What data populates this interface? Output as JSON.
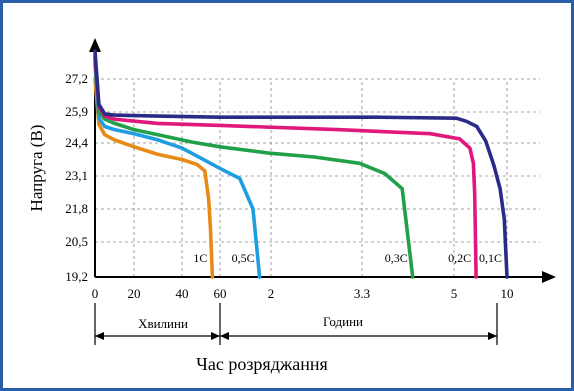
{
  "chart_data": {
    "type": "line",
    "xlabel": "Час розряджання",
    "ylabel": "Напруга (В)",
    "ylim": [
      19.2,
      28.5
    ],
    "y_ticks": [
      "19,2",
      "20,5",
      "21,8",
      "23,1",
      "24,4",
      "25,9",
      "27,2"
    ],
    "x_tick_labels": [
      "0",
      "20",
      "40",
      "60",
      "2",
      "3.3",
      "5",
      "10"
    ],
    "x_units": [
      {
        "label": "Хвилини",
        "range": [
          "0",
          "60"
        ]
      },
      {
        "label": "Години",
        "range": [
          "60",
          "10"
        ]
      }
    ],
    "grid": true,
    "series": [
      {
        "name": "1С",
        "color": "#e88b14",
        "points": [
          [
            0,
            27.2
          ],
          [
            2,
            25.3
          ],
          [
            5,
            24.8
          ],
          [
            10,
            24.55
          ],
          [
            20,
            24.25
          ],
          [
            30,
            23.95
          ],
          [
            40,
            23.75
          ],
          [
            48,
            23.55
          ],
          [
            52,
            23.3
          ],
          [
            54,
            22.2
          ],
          [
            55,
            21.0
          ],
          [
            56,
            19.2
          ]
        ]
      },
      {
        "name": "0,5С",
        "color": "#1e9ee0",
        "points": [
          [
            0,
            27.8
          ],
          [
            2,
            25.6
          ],
          [
            5,
            25.2
          ],
          [
            10,
            25.05
          ],
          [
            20,
            24.85
          ],
          [
            30,
            24.55
          ],
          [
            40,
            24.2
          ],
          [
            50,
            23.8
          ],
          [
            60,
            23.4
          ],
          [
            66,
            23.0
          ],
          [
            70,
            21.8
          ],
          [
            72,
            19.2
          ]
        ]
      },
      {
        "name": "0,3С",
        "color": "#21a04a",
        "points": [
          [
            0,
            28.0
          ],
          [
            2,
            25.9
          ],
          [
            5,
            25.55
          ],
          [
            10,
            25.35
          ],
          [
            20,
            25.05
          ],
          [
            30,
            24.8
          ],
          [
            45,
            24.45
          ],
          [
            60,
            24.25
          ],
          [
            75,
            24.0
          ],
          [
            85,
            23.85
          ],
          [
            95,
            23.6
          ],
          [
            102,
            23.2
          ],
          [
            107,
            22.6
          ],
          [
            110,
            19.2
          ]
        ]
      },
      {
        "name": "0,2С",
        "color": "#e0187c",
        "points": [
          [
            0,
            28.1
          ],
          [
            2,
            26.1
          ],
          [
            5,
            25.7
          ],
          [
            10,
            25.55
          ],
          [
            30,
            25.35
          ],
          [
            60,
            25.25
          ],
          [
            90,
            25.05
          ],
          [
            115,
            24.85
          ],
          [
            130,
            24.6
          ],
          [
            145,
            24.2
          ],
          [
            150,
            23.6
          ],
          [
            152,
            22.4
          ],
          [
            154,
            19.2
          ]
        ]
      },
      {
        "name": "0,1С",
        "color": "#2a2a88",
        "points": [
          [
            0,
            28.3
          ],
          [
            2,
            26.2
          ],
          [
            5,
            25.8
          ],
          [
            10,
            25.75
          ],
          [
            30,
            25.7
          ],
          [
            60,
            25.65
          ],
          [
            100,
            25.65
          ],
          [
            125,
            25.6
          ],
          [
            140,
            25.45
          ],
          [
            155,
            25.2
          ],
          [
            168,
            24.5
          ],
          [
            180,
            23.5
          ],
          [
            189,
            22.6
          ],
          [
            195,
            21.4
          ],
          [
            199,
            19.2
          ]
        ]
      }
    ]
  }
}
